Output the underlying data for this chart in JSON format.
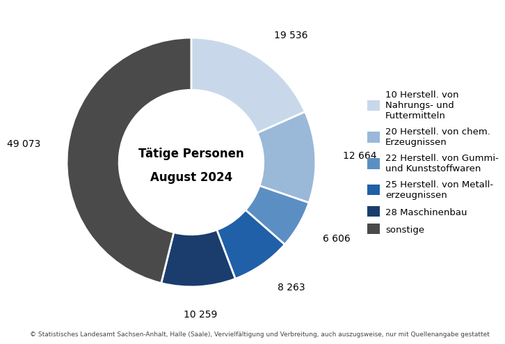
{
  "values": [
    19536,
    12664,
    6606,
    8263,
    10259,
    49073
  ],
  "colors": [
    "#c8d8ea",
    "#9ab8d8",
    "#5b8fc4",
    "#2060a8",
    "#1a3d6e",
    "#4a4a4a"
  ],
  "labels": [
    "10 Herstell. von\nNahrungs- und\nFuttermitteln",
    "20 Herstell. von chem.\nErzeugnissen",
    "22 Herstell. von Gummi-\nund Kunststoffwaren",
    "25 Herstell. von Metall-\nerzeugnissen",
    "28 Maschinenbau",
    "sonstige"
  ],
  "annotation_values": [
    "19 536",
    "12 664",
    "6 606",
    "8 263",
    "10 259",
    "49 073"
  ],
  "center_text_line1": "Tätige Personen",
  "center_text_line2": "August 2024",
  "footnote": "© Statistisches Landesamt Sachsen-Anhalt, Halle (Saale), Vervielfältigung und Verbreitung, auch auszugsweise, nur mit Quellenangabe gestattet",
  "bg_color": "#ffffff",
  "text_color": "#000000",
  "donut_width": 0.42
}
